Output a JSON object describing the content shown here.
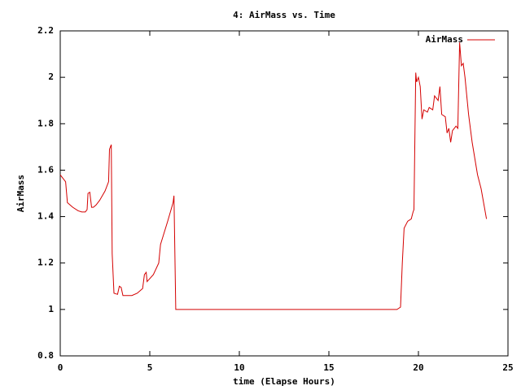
{
  "chart_data": {
    "type": "line",
    "title": "4: AirMass vs. Time",
    "x_label": "time (Elapse Hours)",
    "y_label": "AirMass",
    "x": [
      0,
      0.3,
      0.4,
      0.7,
      1.0,
      1.2,
      1.4,
      1.5,
      1.55,
      1.65,
      1.75,
      1.85,
      2.0,
      2.2,
      2.5,
      2.7,
      2.75,
      2.85,
      2.9,
      3.0,
      3.2,
      3.3,
      3.4,
      3.5,
      4.0,
      4.3,
      4.6,
      4.7,
      4.8,
      4.85,
      5.2,
      5.5,
      5.6,
      6.0,
      6.3,
      6.35,
      6.45,
      18.8,
      19.0,
      19.1,
      19.2,
      19.4,
      19.6,
      19.7,
      19.75,
      19.85,
      19.9,
      20.0,
      20.1,
      20.2,
      20.3,
      20.5,
      20.6,
      20.8,
      20.9,
      21.0,
      21.1,
      21.2,
      21.3,
      21.5,
      21.6,
      21.7,
      21.8,
      21.9,
      22.1,
      22.2,
      22.3,
      22.4,
      22.5,
      22.6,
      22.8,
      23.0,
      23.3,
      23.5,
      23.8
    ],
    "series": [
      {
        "name": "AirMass",
        "color": "#d40000",
        "values": [
          1.58,
          1.55,
          1.46,
          1.44,
          1.425,
          1.42,
          1.42,
          1.43,
          1.5,
          1.505,
          1.44,
          1.44,
          1.45,
          1.47,
          1.51,
          1.55,
          1.69,
          1.71,
          1.24,
          1.07,
          1.065,
          1.1,
          1.095,
          1.06,
          1.06,
          1.07,
          1.09,
          1.15,
          1.16,
          1.12,
          1.15,
          1.2,
          1.28,
          1.38,
          1.46,
          1.49,
          1.0,
          1.0,
          1.01,
          1.2,
          1.35,
          1.38,
          1.39,
          1.42,
          1.43,
          2.02,
          1.98,
          2.0,
          1.96,
          1.82,
          1.86,
          1.85,
          1.87,
          1.86,
          1.92,
          1.91,
          1.9,
          1.96,
          1.84,
          1.83,
          1.76,
          1.78,
          1.72,
          1.77,
          1.79,
          1.78,
          2.15,
          2.05,
          2.06,
          2.0,
          1.84,
          1.72,
          1.58,
          1.52,
          1.39
        ]
      }
    ],
    "xlim": [
      0,
      25
    ],
    "xticks": [
      0,
      5,
      10,
      15,
      20,
      25
    ],
    "ylim": [
      0.8,
      2.2
    ],
    "yticks": [
      0.8,
      1,
      1.2,
      1.4,
      1.6,
      1.8,
      2,
      2.2
    ],
    "grid": false,
    "legend": "top-right"
  }
}
